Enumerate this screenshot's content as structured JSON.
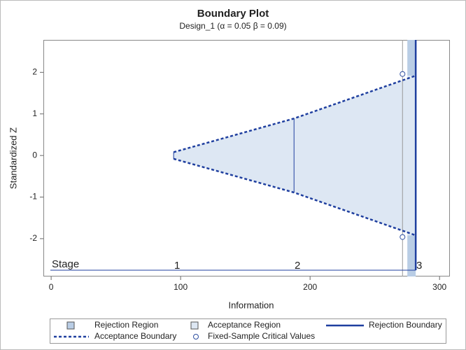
{
  "chart_data": {
    "type": "boundary",
    "title": "Boundary Plot",
    "subtitle": "Design_1 (α = 0.05  β = 0.09)",
    "xlabel": "Information",
    "ylabel": "Standardized Z",
    "stage_label": "Stage",
    "stages": [
      "1",
      "2",
      "3"
    ],
    "information": [
      94.6,
      187.6,
      281.6
    ],
    "upper": [
      0.08,
      0.89,
      1.92
    ],
    "lower": [
      -0.08,
      -0.89,
      -1.92
    ],
    "xlim": [
      -6,
      308
    ],
    "xticks": [
      0,
      100,
      200,
      300
    ],
    "ylim": [
      -2.91,
      2.78
    ],
    "yticks": [
      -2,
      -1,
      0,
      1,
      2
    ],
    "rejection_region": {
      "name": "Rejection Region",
      "color": "#b9cde5"
    },
    "acceptance_region": {
      "name": "Acceptance Region",
      "color": "#dde7f3"
    },
    "rejection_boundary": {
      "name": "Rejection Boundary",
      "color": "#1f3f9f"
    },
    "acceptance_boundary": {
      "name": "Acceptance Boundary",
      "color": "#1f3f9f"
    },
    "fixed_sample": {
      "name": "Fixed-Sample Critical Values",
      "x": 271.4,
      "values": [
        1.96,
        -1.96
      ],
      "color": "#2d4ea0"
    }
  }
}
